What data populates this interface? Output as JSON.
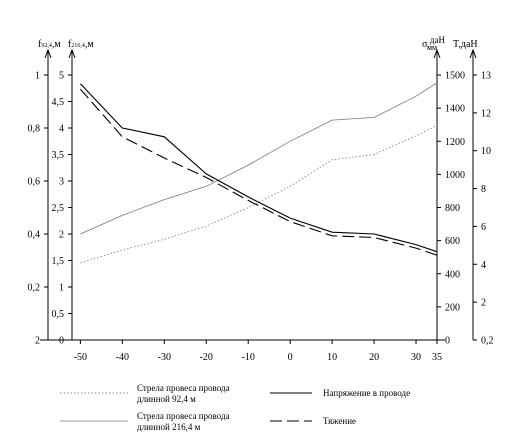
{
  "chart_data": {
    "type": "line",
    "x": [
      -50,
      -40,
      -30,
      -20,
      -10,
      0,
      10,
      20,
      30,
      35
    ],
    "x_ticks": [
      "-50",
      "-40",
      "-30",
      "-20",
      "-10",
      "0",
      "10",
      "20",
      "30",
      "35"
    ],
    "xlim": [
      -52,
      35
    ],
    "axes": {
      "f92": {
        "label_main": "f",
        "label_sub": "92,4",
        "label_unit": ",м",
        "ticks": [
          "2",
          "0,2",
          "0,4",
          "0,6",
          "0,8",
          "1"
        ],
        "ylim": [
          0,
          1.0
        ]
      },
      "f216": {
        "label_main": "f",
        "label_sub": "216,4",
        "label_unit": ",м",
        "ticks": [
          "0",
          "0,5",
          "1",
          "1,5",
          "2",
          "2,5",
          "3",
          "3,5",
          "4",
          "4,5",
          "5"
        ],
        "ylim": [
          0,
          5
        ]
      },
      "sigma": {
        "label_main": "σ,",
        "label_frac_top": "даН",
        "label_frac_bottom": "мм",
        "ticks": [
          "0",
          "200",
          "400",
          "600",
          "800",
          "1000",
          "1200",
          "1400",
          "1500"
        ],
        "ylim": [
          0,
          1500
        ]
      },
      "T": {
        "label": "T,даН",
        "ticks": [
          "0,2",
          "2",
          "4",
          "6",
          "8",
          "10",
          "12",
          "13"
        ],
        "ylim": [
          0,
          13
        ]
      }
    },
    "series": [
      {
        "name": "Стрела провеса провода длинной 92,4 м",
        "axis": "f92",
        "style": "dotted",
        "values": [
          0.29,
          0.34,
          0.38,
          0.43,
          0.5,
          0.58,
          0.68,
          0.7,
          0.77,
          0.81
        ]
      },
      {
        "name": "Стрела провеса провода длинной 216,4 м",
        "axis": "f216",
        "style": "thin-solid",
        "values": [
          2.0,
          2.35,
          2.65,
          2.9,
          3.3,
          3.75,
          4.15,
          4.2,
          4.6,
          4.85
        ]
      },
      {
        "name": "Напряжение в проводе",
        "axis": "sigma",
        "style": "solid",
        "values": [
          1450,
          1200,
          1150,
          940,
          810,
          690,
          610,
          600,
          540,
          500
        ]
      },
      {
        "name": "Тяжение",
        "axis": "sigma",
        "style": "dashed",
        "values": [
          1420,
          1150,
          1030,
          920,
          790,
          670,
          590,
          580,
          520,
          480
        ]
      }
    ],
    "legend": [
      {
        "line1": "Стрела провеса провода",
        "line2": "длинной 92,4 м",
        "style": "dotted"
      },
      {
        "line1": "Стрела провеса провода",
        "line2": "длинной 216,4 м",
        "style": "thin-solid"
      },
      {
        "line1": "Напряжение в проводе",
        "line2": "",
        "style": "solid"
      },
      {
        "line1": "Тяжение",
        "line2": "",
        "style": "dashed"
      }
    ],
    "legend_position": "bottom",
    "grid": false
  }
}
